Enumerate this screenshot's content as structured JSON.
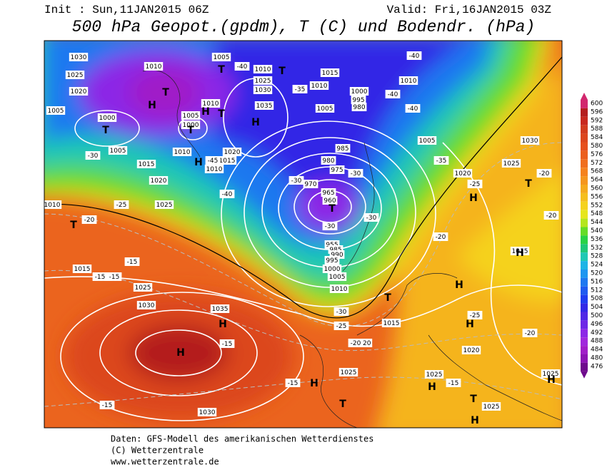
{
  "header": {
    "init": "Init : Sun,11JAN2015 06Z",
    "valid": "Valid: Fri,16JAN2015 03Z",
    "title": "500 hPa Geopot.(gpdm), T (C) und Bodendr. (hPa)"
  },
  "map": {
    "isobar_labels": [
      "1030",
      "1025",
      "1020",
      "1005",
      "1010",
      "1000",
      "1005",
      "1005",
      "1010",
      "1025",
      "1030",
      "1035",
      "1010",
      "1005",
      "1000",
      "1010",
      "1020",
      "1015",
      "1010",
      "1015",
      "1020",
      "1010",
      "1025",
      "1015",
      "1025",
      "1030",
      "1035",
      "1015",
      "1010",
      "1005",
      "1000",
      "995",
      "980",
      "985",
      "980",
      "975",
      "970",
      "965",
      "960",
      "955",
      "985",
      "990",
      "995",
      "1000",
      "1005",
      "1010",
      "1015",
      "1020",
      "1025",
      "1030",
      "1025",
      "1025",
      "1025",
      "1020",
      "1015",
      "1020",
      "1025",
      "1030",
      "1005",
      "1010"
    ],
    "temperature_labels": [
      "-40",
      "-35",
      "-40",
      "-40",
      "-40",
      "-30",
      "-45",
      "-40",
      "-30",
      "-30",
      "-25",
      "-20",
      "-30",
      "-30",
      "-25",
      "-20",
      "-20",
      "-20",
      "-15",
      "-15",
      "-15",
      "-30",
      "-25",
      "-15",
      "-20",
      "-15",
      "-15",
      "-15",
      "-20",
      "-25",
      "-35"
    ],
    "centers": [
      "T",
      "T",
      "T",
      "H",
      "H",
      "T",
      "H",
      "T",
      "T",
      "H",
      "T",
      "T",
      "H",
      "H",
      "H",
      "H",
      "T",
      "H",
      "H",
      "H",
      "H",
      "T",
      "T",
      "H",
      "H",
      "T"
    ]
  },
  "legend": {
    "values": [
      600,
      596,
      592,
      588,
      584,
      580,
      576,
      572,
      568,
      564,
      560,
      556,
      552,
      548,
      544,
      540,
      536,
      532,
      528,
      524,
      520,
      516,
      512,
      508,
      504,
      500,
      496,
      492,
      488,
      484,
      480,
      476
    ],
    "colors": [
      "#d2286e",
      "#b41e1e",
      "#c8281e",
      "#d23c1e",
      "#dc461e",
      "#e6501e",
      "#eb5f1e",
      "#f06e1e",
      "#f5821e",
      "#f5961e",
      "#f5aa1e",
      "#f5be1e",
      "#f5d21e",
      "#e6e61e",
      "#b4e61e",
      "#64dc28",
      "#28d246",
      "#1ec878",
      "#1ec8b4",
      "#1eb4e6",
      "#1e96f0",
      "#1e78f0",
      "#1e5af0",
      "#1e3cf0",
      "#3228e6",
      "#5028e6",
      "#6e28e6",
      "#8c28e6",
      "#a028dc",
      "#a01ec8",
      "#8c14b4",
      "#6e0a8c"
    ]
  },
  "footer": {
    "lines": [
      "Daten: GFS-Modell des amerikanischen Wetterdienstes",
      "(C) Wetterzentrale",
      "www.wetterzentrale.de"
    ]
  }
}
